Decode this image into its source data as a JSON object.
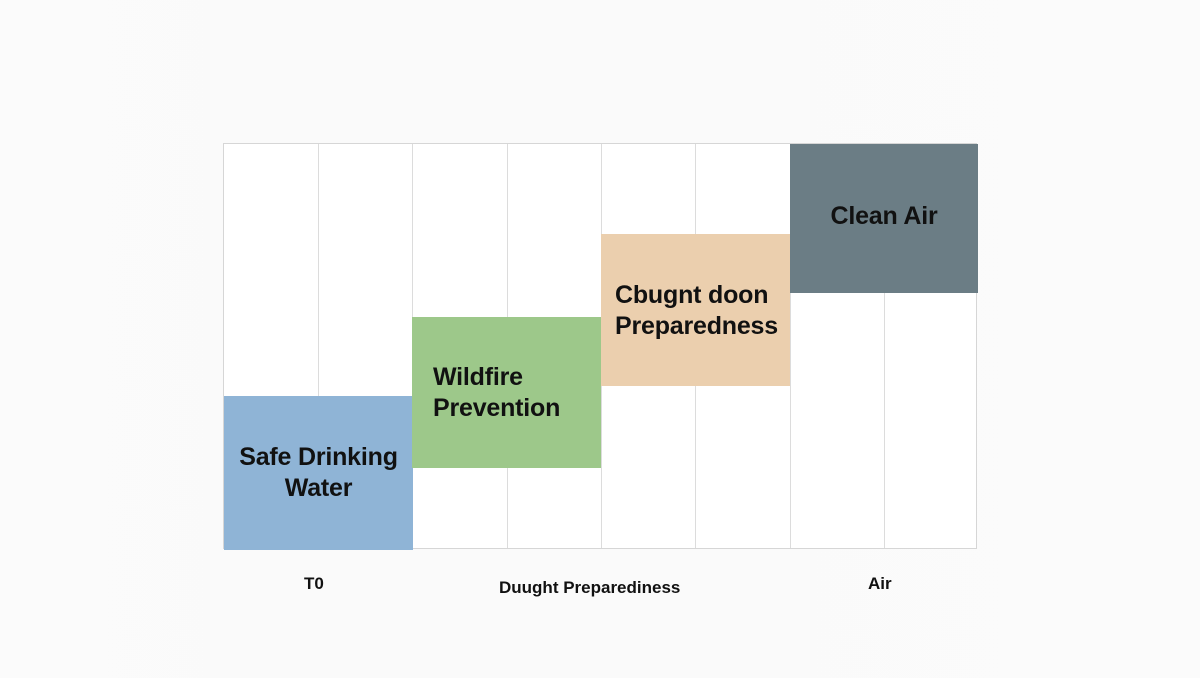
{
  "blocks": [
    {
      "id": "safe-drinking-water",
      "lines": [
        "Safe Drinking",
        "Water"
      ],
      "color": "#8fb4d6"
    },
    {
      "id": "wildfire-prevention",
      "lines": [
        "Wildfire",
        "Prevention"
      ],
      "color": "#9dc88a"
    },
    {
      "id": "drought-preparedness",
      "lines": [
        "Cbugnt doon",
        "Preparedness"
      ],
      "color": "#ebcfae"
    },
    {
      "id": "clean-air",
      "lines": [
        "Clean Air"
      ],
      "color": "#6b7d85"
    }
  ],
  "axis_labels": [
    "T0",
    "Duught Preparediness",
    "Air"
  ]
}
